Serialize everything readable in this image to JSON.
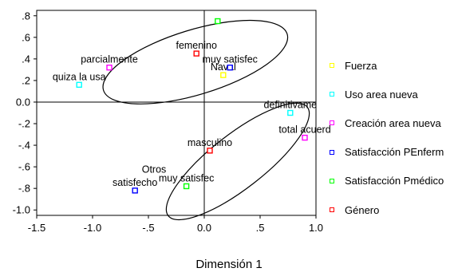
{
  "chart_data": {
    "type": "scatter",
    "xlabel": "Dimensión 1",
    "ylabel": "",
    "xlim": [
      -1.5,
      1.0
    ],
    "ylim": [
      -1.05,
      0.85
    ],
    "x_ticks": [
      -1.5,
      -1.0,
      -0.5,
      0.0,
      0.5,
      1.0
    ],
    "x_tick_labels": [
      "-1.5",
      "-1.0",
      "-.5",
      "0.0",
      ".5",
      "1.0"
    ],
    "y_ticks": [
      0.8,
      0.6,
      0.4,
      0.2,
      0.0,
      -0.2,
      -0.4,
      -0.6,
      -0.8,
      -1.0
    ],
    "y_tick_labels": [
      ".8",
      ".6",
      ".4",
      ".2",
      "0.0",
      "-.2",
      "-.4",
      "-.6",
      "-.8",
      "-1.0"
    ],
    "grid": false,
    "reference_lines": {
      "x": 0,
      "y": 0
    },
    "legend_position": "right",
    "series": [
      {
        "name": "Fuerza",
        "color": "#ffff00",
        "points": [
          {
            "label": "Naval",
            "x": 0.17,
            "y": 0.25
          }
        ]
      },
      {
        "name": "Uso area nueva",
        "color": "#00ffff",
        "points": [
          {
            "label": "quiza la usa",
            "x": -1.12,
            "y": 0.16
          },
          {
            "label": "definitivame",
            "x": 0.77,
            "y": -0.1
          }
        ]
      },
      {
        "name": "Creación area nueva",
        "color": "#ff00ff",
        "points": [
          {
            "label": "parcialmente",
            "x": -0.85,
            "y": 0.32
          },
          {
            "label": "total acuerd",
            "x": 0.9,
            "y": -0.33
          }
        ]
      },
      {
        "name": "Satisfacción PEnferm",
        "color": "#0000ff",
        "points": [
          {
            "label": "muy satisfec",
            "x": 0.23,
            "y": 0.32
          },
          {
            "label": "satisfecho",
            "x": -0.62,
            "y": -0.82
          }
        ]
      },
      {
        "name": "Satisfacción Pmédico",
        "color": "#00ff00",
        "points": [
          {
            "label": "",
            "x": 0.12,
            "y": 0.75
          },
          {
            "label": "muy satisfec",
            "x": -0.16,
            "y": -0.78
          }
        ]
      },
      {
        "name": "Género",
        "color": "#ff0000",
        "points": [
          {
            "label": "femenino",
            "x": -0.07,
            "y": 0.45
          },
          {
            "label": "masculino",
            "x": 0.05,
            "y": -0.45
          }
        ]
      }
    ],
    "extra_labels": [
      {
        "text": "Otros",
        "x": -0.45,
        "y": -0.7
      }
    ],
    "ellipses": [
      {
        "cx": -0.08,
        "cy": 0.37,
        "rx": 0.86,
        "ry": 0.3,
        "angle_deg": -17
      },
      {
        "cx": 0.3,
        "cy": -0.55,
        "rx": 0.79,
        "ry": 0.25,
        "angle_deg": -38
      }
    ]
  }
}
